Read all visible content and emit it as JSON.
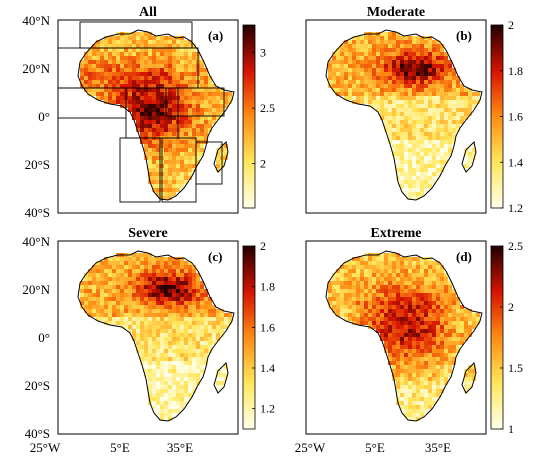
{
  "panels": [
    {
      "id": "a",
      "title": "All",
      "letter": "(a)",
      "cb_ticks": [
        "3",
        "2.5",
        "2"
      ],
      "cb_min": 1.6,
      "cb_max": 3.25,
      "cb_vals": [
        3,
        2.5,
        2
      ],
      "pattern": "all",
      "show_regions": true
    },
    {
      "id": "b",
      "title": "Moderate",
      "letter": "(b)",
      "cb_ticks": [
        "2",
        "1.8",
        "1.6",
        "1.4",
        "1.2"
      ],
      "cb_min": 1.2,
      "cb_max": 2.0,
      "cb_vals": [
        2,
        1.8,
        1.6,
        1.4,
        1.2
      ],
      "pattern": "north",
      "show_regions": false
    },
    {
      "id": "c",
      "title": "Severe",
      "letter": "(c)",
      "cb_ticks": [
        "2",
        "1.8",
        "1.6",
        "1.4",
        "1.2"
      ],
      "cb_min": 1.1,
      "cb_max": 2.0,
      "cb_vals": [
        2,
        1.8,
        1.6,
        1.4,
        1.2
      ],
      "pattern": "north",
      "show_regions": false
    },
    {
      "id": "d",
      "title": "Extreme",
      "letter": "(d)",
      "cb_ticks": [
        "2.5",
        "2",
        "1.5",
        "1"
      ],
      "cb_min": 1.0,
      "cb_max": 2.5,
      "cb_vals": [
        2.5,
        2,
        1.5,
        1
      ],
      "pattern": "central",
      "show_regions": false
    }
  ],
  "lat_labels": [
    "40°N",
    "20°N",
    "0°",
    "20°S",
    "40°S"
  ],
  "lon_labels": [
    "25°W",
    "5°E",
    "35°E"
  ],
  "colormap": {
    "low": "#ffffe0",
    "mid1": "#ffe14d",
    "mid2": "#ff7a00",
    "mid3": "#d40000",
    "high": "#2a0000"
  }
}
